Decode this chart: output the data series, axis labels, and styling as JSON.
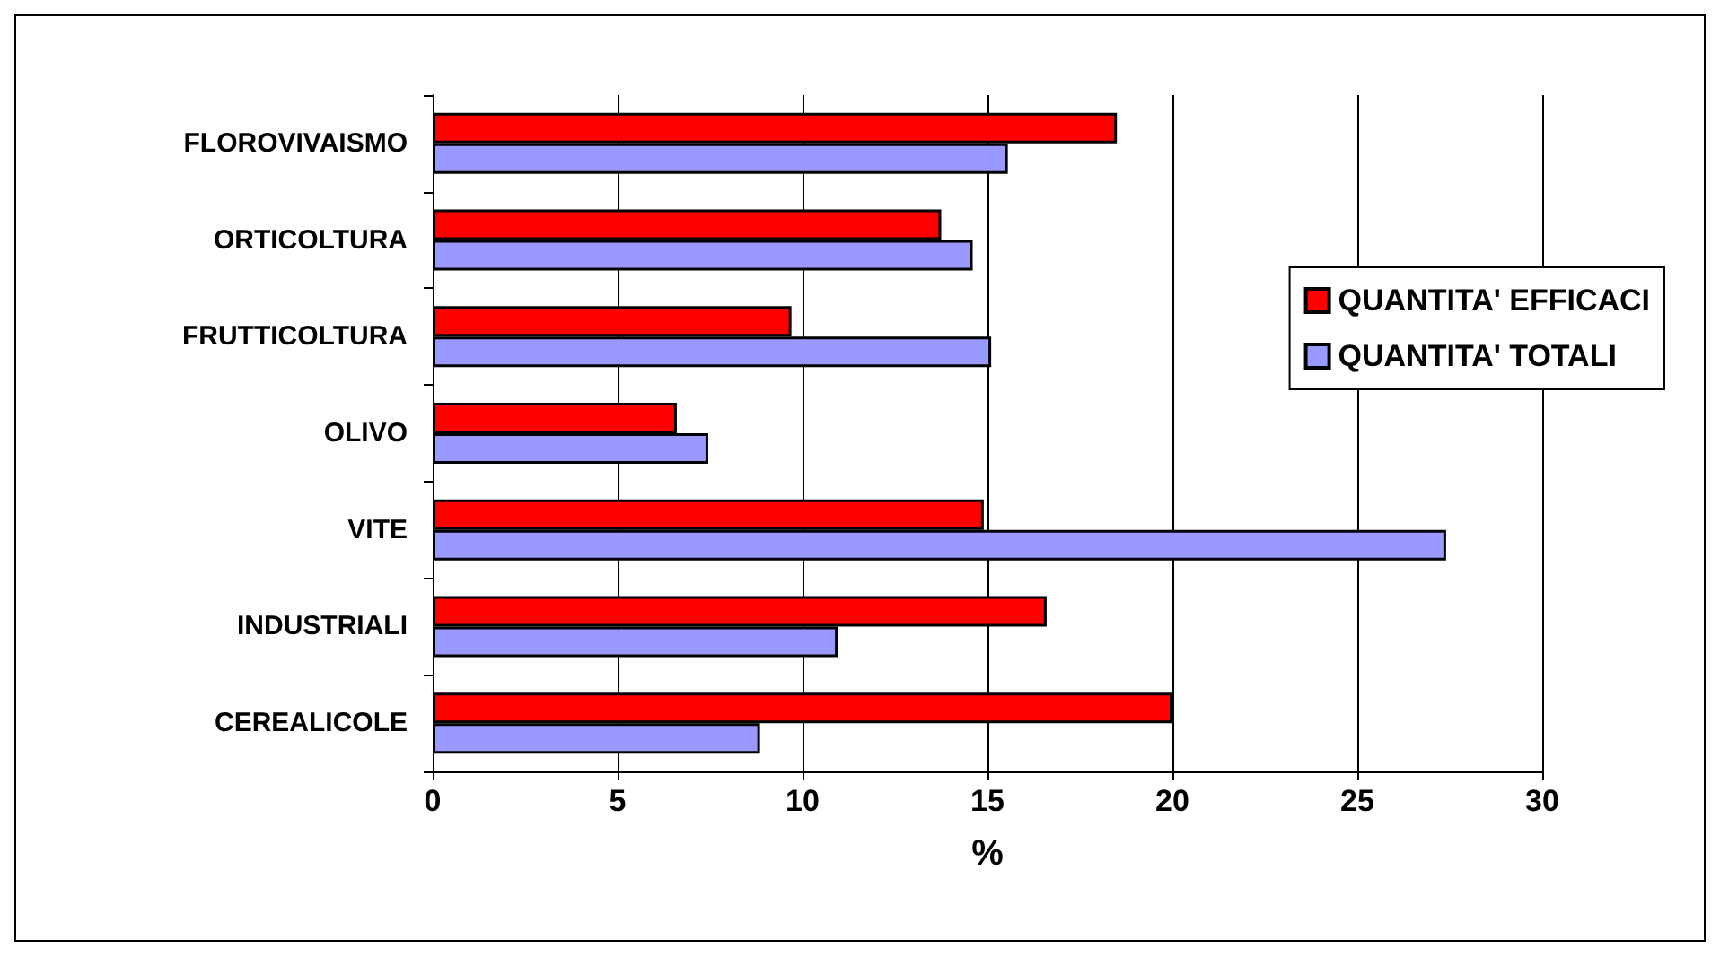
{
  "chart_data": {
    "type": "bar",
    "orientation": "horizontal",
    "xlabel": "%",
    "categories": [
      "FLOROVIVAISMO",
      "ORTICOLTURA",
      "FRUTTICOLTURA",
      "OLIVO",
      "VITE",
      "INDUSTRIALI",
      "CEREALICOLE"
    ],
    "series": [
      {
        "name": "QUANTITA' EFFICACI",
        "color": "#ff0000",
        "values": [
          18.5,
          13.75,
          9.7,
          6.6,
          14.9,
          16.6,
          20.0
        ]
      },
      {
        "name": "QUANTITA' TOTALI",
        "color": "#9999ff",
        "values": [
          15.55,
          14.6,
          15.1,
          7.45,
          27.4,
          10.95,
          8.85
        ]
      }
    ],
    "xlim": [
      0,
      30
    ],
    "xticks": [
      0,
      5,
      10,
      15,
      20,
      25,
      30
    ],
    "grid": "x",
    "legend": "right"
  }
}
